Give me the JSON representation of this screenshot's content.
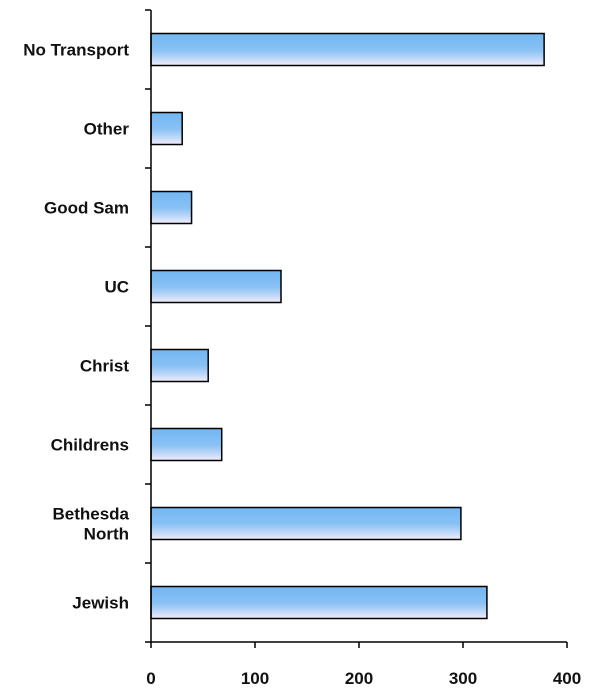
{
  "chart_data": {
    "type": "bar",
    "orientation": "horizontal",
    "title": "",
    "xlabel": "",
    "ylabel": "",
    "categories": [
      "No Transport",
      "Other",
      "Good Sam",
      "UC",
      "Christ",
      "Childrens",
      "Bethesda North",
      "Jewish"
    ],
    "category_lines": [
      [
        "No Transport"
      ],
      [
        "Other"
      ],
      [
        "Good Sam"
      ],
      [
        "UC"
      ],
      [
        "Christ"
      ],
      [
        "Childrens"
      ],
      [
        "Bethesda",
        "North"
      ],
      [
        "Jewish"
      ]
    ],
    "values": [
      378,
      30,
      39,
      125,
      55,
      68,
      298,
      323
    ],
    "xlim": [
      0,
      400
    ],
    "xticks": [
      0,
      100,
      200,
      300,
      400
    ],
    "grid": false,
    "legend": "none",
    "colors": {
      "bar_light": "#f4eefb",
      "bar_dark": "#72b6f2",
      "bar_outline": "#000000",
      "axis": "#000000"
    }
  }
}
